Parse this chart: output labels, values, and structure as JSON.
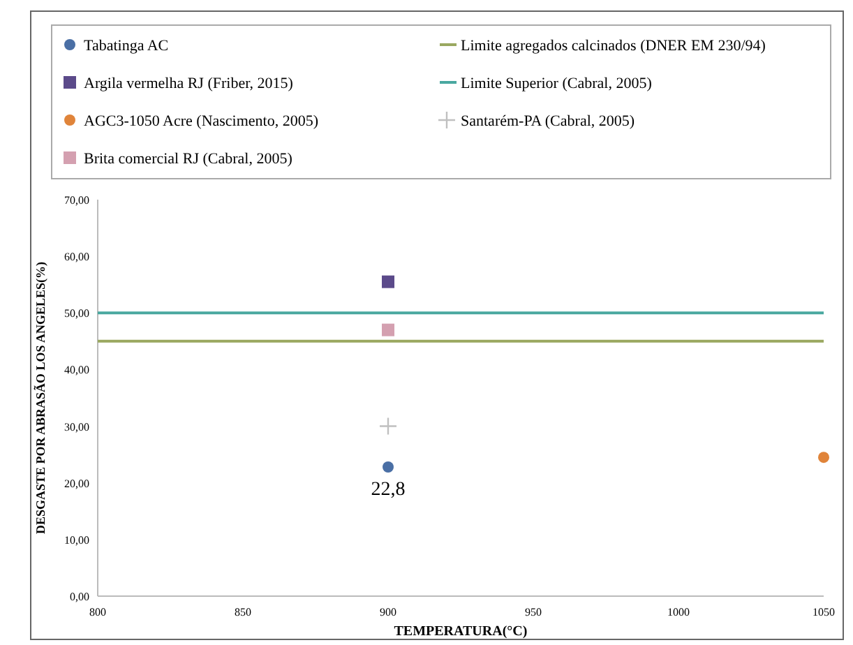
{
  "chart_data": {
    "type": "scatter",
    "xlabel": "TEMPERATURA(°C)",
    "ylabel": "DESGASTE POR ABRASÃO LOS ANGELES(%)",
    "xlim": [
      800,
      1050
    ],
    "xticks": [
      800,
      850,
      900,
      950,
      1000,
      1050
    ],
    "ylim": [
      0,
      70
    ],
    "yticks": [
      {
        "value": 0,
        "label": "0,00"
      },
      {
        "value": 10,
        "label": "10,00"
      },
      {
        "value": 20,
        "label": "20,00"
      },
      {
        "value": 30,
        "label": "30,00"
      },
      {
        "value": 40,
        "label": "40,00"
      },
      {
        "value": 50,
        "label": "50,00"
      },
      {
        "value": 60,
        "label": "60,00"
      },
      {
        "value": 70,
        "label": "70,00"
      }
    ],
    "grid": false,
    "legend": "top",
    "series": [
      {
        "name": "Tabatinga AC",
        "color": "#4a6fa5",
        "marker": "circle",
        "x": [
          900
        ],
        "values": [
          22.8
        ],
        "value_labels": [
          "22,8"
        ]
      },
      {
        "name": "Argila vermelha RJ (Friber, 2015)",
        "color": "#5b4a8a",
        "marker": "square",
        "x": [
          900
        ],
        "values": [
          55.5
        ]
      },
      {
        "name": "AGC3-1050 Acre (Nascimento, 2005)",
        "color": "#e0843a",
        "marker": "circle",
        "x": [
          1050
        ],
        "values": [
          24.5
        ]
      },
      {
        "name": "Brita comercial RJ (Cabral, 2005)",
        "color": "#d4a0b0",
        "marker": "square",
        "x": [
          900
        ],
        "values": [
          47
        ]
      },
      {
        "name": "Limite agregados calcinados (DNER EM 230/94)",
        "type": "line",
        "color": "#9aa860",
        "marker": "none",
        "x": [
          800,
          1050
        ],
        "values": [
          45,
          45
        ]
      },
      {
        "name": "Limite Superior (Cabral, 2005)",
        "type": "line",
        "color": "#4aa8a0",
        "marker": "none",
        "x": [
          800,
          1050
        ],
        "values": [
          50,
          50
        ]
      },
      {
        "name": "Santarém-PA (Cabral, 2005)",
        "color": "#c0c0c0",
        "marker": "cross",
        "x": [
          900
        ],
        "values": [
          30
        ]
      }
    ]
  }
}
